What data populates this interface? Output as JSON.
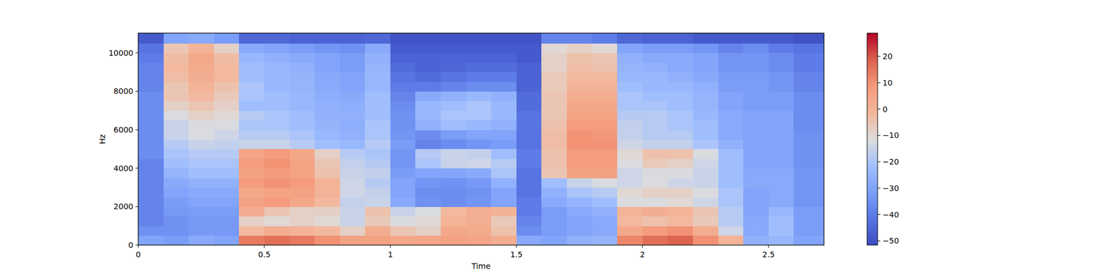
{
  "chart_data": {
    "type": "heatmap",
    "x_label": "Time",
    "y_label": "Hz",
    "xlim": [
      0,
      2.72
    ],
    "ylim": [
      0,
      11025
    ],
    "xticks": [
      0,
      0.5,
      1,
      1.5,
      2,
      2.5
    ],
    "yticks": [
      0,
      2000,
      4000,
      6000,
      8000,
      10000
    ],
    "x_edges": [
      0,
      0.1,
      0.2,
      0.3,
      0.4,
      0.5,
      0.6,
      0.7,
      0.8,
      0.9,
      1.0,
      1.1,
      1.2,
      1.3,
      1.4,
      1.5,
      1.6,
      1.7,
      1.8,
      1.9,
      2.0,
      2.1,
      2.2,
      2.3,
      2.4,
      2.5,
      2.6,
      2.72
    ],
    "y_edges": [
      0,
      500,
      1000,
      1500,
      2000,
      2500,
      3000,
      3500,
      4000,
      4500,
      5000,
      5500,
      6000,
      6500,
      7000,
      7500,
      8000,
      8500,
      9000,
      9500,
      10000,
      10500,
      11025
    ],
    "cells": [
      [
        -30,
        -35,
        -38,
        -38,
        -38,
        -38,
        -38,
        -38,
        -38,
        -36,
        -36,
        -36,
        -36,
        -36,
        -36,
        -36,
        -38,
        -38,
        -38,
        -40,
        -42,
        -48
      ],
      [
        -32,
        -35,
        -35,
        -33,
        -32,
        -30,
        -28,
        -25,
        -22,
        -20,
        -18,
        -15,
        -15,
        -12,
        -8,
        -5,
        -5,
        -3,
        -2,
        -3,
        -5,
        -30
      ],
      [
        -28,
        -33,
        -33,
        -32,
        -30,
        -28,
        -26,
        -22,
        -20,
        -18,
        -15,
        -12,
        -12,
        -8,
        -5,
        -2,
        0,
        2,
        3,
        4,
        0,
        -28
      ],
      [
        -30,
        -33,
        -33,
        -32,
        -30,
        -28,
        -26,
        -22,
        -20,
        -18,
        -16,
        -14,
        -12,
        -10,
        -8,
        -6,
        -4,
        -2,
        -2,
        -3,
        -8,
        -32
      ],
      [
        14,
        -2,
        -8,
        2,
        6,
        4,
        8,
        6,
        8,
        5,
        -15,
        -18,
        -20,
        -18,
        -22,
        -20,
        -20,
        -22,
        -22,
        -24,
        -28,
        -45
      ],
      [
        16,
        2,
        -10,
        -5,
        8,
        6,
        10,
        8,
        10,
        8,
        -15,
        -18,
        -20,
        -20,
        -22,
        -22,
        -24,
        -24,
        -24,
        -26,
        -30,
        -45
      ],
      [
        14,
        0,
        -8,
        -8,
        4,
        6,
        8,
        6,
        6,
        4,
        -18,
        -20,
        -22,
        -22,
        -24,
        -24,
        -25,
        -25,
        -26,
        -28,
        -32,
        -46
      ],
      [
        10,
        -2,
        -10,
        -8,
        -2,
        0,
        0,
        -4,
        -5,
        -8,
        -22,
        -24,
        -25,
        -26,
        -26,
        -27,
        -28,
        -28,
        -30,
        -30,
        -34,
        -46
      ],
      [
        6,
        -8,
        -15,
        -15,
        -16,
        -14,
        -14,
        -15,
        -16,
        -18,
        -24,
        -26,
        -27,
        -26,
        -27,
        -28,
        -30,
        -30,
        -32,
        -32,
        -35,
        -46
      ],
      [
        6,
        2,
        -6,
        -4,
        -15,
        -16,
        -18,
        -16,
        -18,
        -20,
        -18,
        -20,
        -20,
        -22,
        -22,
        -22,
        -24,
        -24,
        -25,
        -26,
        -28,
        -45
      ],
      [
        4,
        -5,
        -12,
        -15,
        -28,
        -30,
        -30,
        -32,
        -34,
        -34,
        -32,
        -34,
        -35,
        -35,
        -36,
        -38,
        -40,
        -42,
        -44,
        -46,
        -48,
        -50
      ],
      [
        5,
        -8,
        -10,
        -12,
        -35,
        -36,
        -34,
        -30,
        -20,
        -18,
        -38,
        -36,
        -26,
        -24,
        -24,
        -28,
        -40,
        -44,
        -46,
        -46,
        -48,
        -50
      ],
      [
        6,
        4,
        0,
        -2,
        -36,
        -36,
        -35,
        -30,
        -15,
        -15,
        -36,
        -32,
        -22,
        -20,
        -22,
        -26,
        -38,
        -42,
        -45,
        -46,
        -48,
        -50
      ],
      [
        5,
        3,
        2,
        2,
        -34,
        -35,
        -33,
        -28,
        -14,
        -16,
        -34,
        -30,
        -24,
        -20,
        -20,
        -24,
        -36,
        -40,
        -44,
        -46,
        -48,
        -50
      ],
      [
        2,
        -4,
        -6,
        0,
        -30,
        -30,
        -26,
        -20,
        -18,
        -22,
        -32,
        -30,
        -26,
        -24,
        -24,
        -26,
        -36,
        -40,
        -44,
        -46,
        -48,
        -50
      ],
      [
        -28,
        -36,
        -38,
        -40,
        -40,
        -42,
        -42,
        -42,
        -40,
        -40,
        -42,
        -42,
        -42,
        -42,
        -44,
        -44,
        -46,
        -46,
        -46,
        -48,
        -48,
        -50
      ],
      [
        -30,
        -32,
        -32,
        -32,
        -28,
        -26,
        -22,
        -5,
        -4,
        -4,
        -3,
        -3,
        -4,
        -5,
        -5,
        -5,
        -6,
        -6,
        -8,
        -8,
        -10,
        -38
      ],
      [
        -26,
        -30,
        -30,
        -28,
        -25,
        -20,
        -15,
        6,
        8,
        8,
        10,
        10,
        8,
        6,
        4,
        2,
        0,
        -2,
        -3,
        -4,
        -8,
        -38
      ],
      [
        -25,
        -28,
        -28,
        -26,
        -22,
        -18,
        -12,
        6,
        8,
        8,
        10,
        9,
        8,
        6,
        4,
        2,
        0,
        -2,
        -4,
        -5,
        -10,
        -40
      ],
      [
        12,
        4,
        -2,
        0,
        -12,
        -10,
        -14,
        -14,
        -12,
        -10,
        -14,
        -16,
        -16,
        -18,
        -20,
        -20,
        -22,
        -24,
        -25,
        -26,
        -30,
        -45
      ],
      [
        16,
        8,
        -4,
        2,
        -12,
        -8,
        -12,
        -12,
        -6,
        -4,
        -16,
        -18,
        -18,
        -18,
        -20,
        -22,
        -24,
        -24,
        -26,
        -28,
        -32,
        -46
      ],
      [
        18,
        10,
        -2,
        0,
        -10,
        -8,
        -14,
        -12,
        -8,
        -4,
        -16,
        -18,
        -20,
        -20,
        -22,
        -22,
        -24,
        -26,
        -28,
        -28,
        -32,
        -46
      ],
      [
        10,
        2,
        -6,
        -5,
        -14,
        -12,
        -15,
        -15,
        -14,
        -12,
        -20,
        -22,
        -22,
        -24,
        -25,
        -25,
        -26,
        -28,
        -30,
        -30,
        -34,
        -48
      ],
      [
        0,
        -14,
        -18,
        -18,
        -20,
        -20,
        -22,
        -22,
        -22,
        -22,
        -26,
        -28,
        -28,
        -28,
        -30,
        -30,
        -32,
        -32,
        -34,
        -34,
        -38,
        -48
      ],
      [
        -26,
        -28,
        -28,
        -30,
        -30,
        -30,
        -28,
        -28,
        -30,
        -30,
        -30,
        -30,
        -30,
        -30,
        -32,
        -32,
        -32,
        -32,
        -34,
        -34,
        -36,
        -48
      ],
      [
        -24,
        -22,
        -22,
        -24,
        -28,
        -28,
        -28,
        -28,
        -30,
        -30,
        -30,
        -30,
        -30,
        -30,
        -32,
        -32,
        -34,
        -34,
        -36,
        -36,
        -40,
        -48
      ],
      [
        -30,
        -32,
        -32,
        -32,
        -34,
        -34,
        -34,
        -34,
        -35,
        -35,
        -35,
        -35,
        -36,
        -36,
        -36,
        -36,
        -38,
        -38,
        -40,
        -40,
        -42,
        -50
      ]
    ],
    "colorbar_range": [
      -51.6,
      28.8
    ],
    "colorbar_ticks": [
      {
        "value": -50,
        "label": "−50"
      },
      {
        "value": -40,
        "label": "−40"
      },
      {
        "value": -30,
        "label": "−30"
      },
      {
        "value": -20,
        "label": "−20"
      },
      {
        "value": -10,
        "label": "−10"
      },
      0,
      10,
      20
    ]
  }
}
